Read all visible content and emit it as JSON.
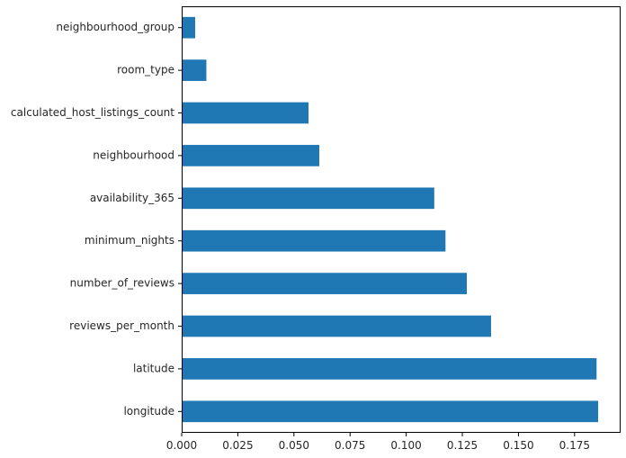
{
  "chart_data": {
    "type": "bar",
    "orientation": "horizontal",
    "title": "",
    "xlabel": "",
    "ylabel": "",
    "categories": [
      "longitude",
      "latitude",
      "reviews_per_month",
      "number_of_reviews",
      "minimum_nights",
      "availability_365",
      "neighbourhood",
      "calculated_host_listings_count",
      "room_type",
      "neighbourhood_group"
    ],
    "values": [
      0.1855,
      0.1848,
      0.1378,
      0.127,
      0.1175,
      0.1125,
      0.0613,
      0.0565,
      0.011,
      0.006
    ],
    "xlim": [
      0,
      0.1955
    ],
    "xticks": [
      0.0,
      0.025,
      0.05,
      0.075,
      0.1,
      0.125,
      0.15,
      0.175
    ],
    "xtick_labels": [
      "0.000",
      "0.025",
      "0.050",
      "0.075",
      "0.100",
      "0.125",
      "0.150",
      "0.175"
    ],
    "grid": false,
    "legend": "none",
    "bar_color": "#1f77b4"
  }
}
